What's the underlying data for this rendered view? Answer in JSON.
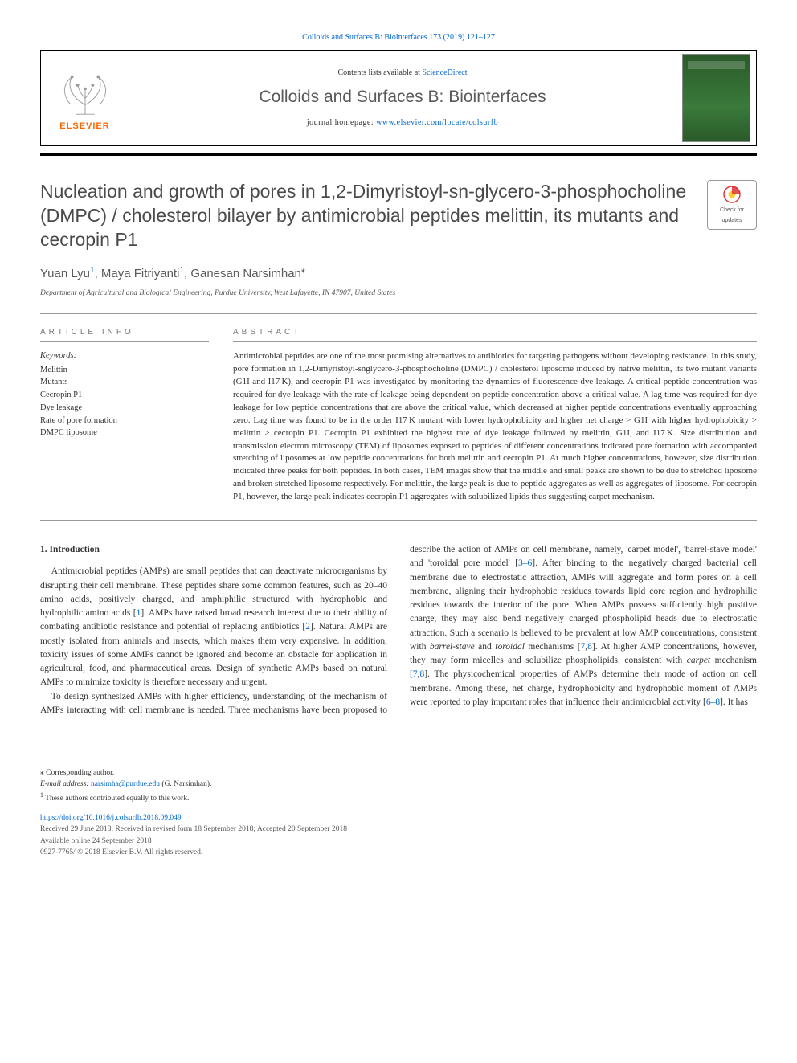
{
  "journal": {
    "citation_line": "Colloids and Surfaces B: Biointerfaces 173 (2019) 121–127",
    "contents_prefix": "Contents lists available at ",
    "contents_link": "ScienceDirect",
    "name": "Colloids and Surfaces B: Biointerfaces",
    "homepage_prefix": "journal homepage: ",
    "homepage_link": "www.elsevier.com/locate/colsurfb",
    "publisher_label": "ELSEVIER"
  },
  "badge": {
    "line1": "Check for",
    "line2": "updates"
  },
  "paper": {
    "title": "Nucleation and growth of pores in 1,2-Dimyristoyl-sn-glycero-3-phosphocholine (DMPC) / cholesterol bilayer by antimicrobial peptides melittin, its mutants and cecropin P1",
    "authors_html": "Yuan Lyu<sup>1</sup>, Maya Fitriyanti<sup>1</sup>, Ganesan Narsimhan<sup class=\"ast\">⁎</sup>",
    "affiliation": "Department of Agricultural and Biological Engineering, Purdue University, West Lafayette, IN 47907, United States"
  },
  "article_info": {
    "heading": "ARTICLE INFO",
    "keywords_label": "Keywords:",
    "keywords": [
      "Melittin",
      "Mutants",
      "Cecropin P1",
      "Dye leakage",
      "Rate of pore formation",
      "DMPC liposome"
    ]
  },
  "abstract": {
    "heading": "ABSTRACT",
    "text": "Antimicrobial peptides are one of the most promising alternatives to antibiotics for targeting pathogens without developing resistance. In this study, pore formation in 1,2-Dimyristoyl-snglycero-3-phosphocholine (DMPC) / cholesterol liposome induced by native melittin, its two mutant variants (G1I and I17 K), and cecropin P1 was investigated by monitoring the dynamics of fluorescence dye leakage. A critical peptide concentration was required for dye leakage with the rate of leakage being dependent on peptide concentration above a critical value. A lag time was required for dye leakage for low peptide concentrations that are above the critical value, which decreased at higher peptide concentrations eventually approaching zero. Lag time was found to be in the order I17 K mutant with lower hydrophobicity and higher net charge > G1I with higher hydrophobicity > melittin > cecropin P1. Cecropin P1 exhibited the highest rate of dye leakage followed by melittin, G1I, and I17 K. Size distribution and transmission electron microscopy (TEM) of liposomes exposed to peptides of different concentrations indicated pore formation with accompanied stretching of liposomes at low peptide concentrations for both melittin and cecropin P1. At much higher concentrations, however, size distribution indicated three peaks for both peptides. In both cases, TEM images show that the middle and small peaks are shown to be due to stretched liposome and broken stretched liposome respectively. For melittin, the large peak is due to peptide aggregates as well as aggregates of liposome. For cecropin P1, however, the large peak indicates cecropin P1 aggregates with solubilized lipids thus suggesting carpet mechanism."
  },
  "body": {
    "heading": "1. Introduction",
    "p1": "Antimicrobial peptides (AMPs) are small peptides that can deactivate microorganisms by disrupting their cell membrane. These peptides share some common features, such as 20–40 amino acids, positively charged, and amphiphilic structured with hydrophobic and hydrophilic amino acids [",
    "c1": "1",
    "p1b": "]. AMPs have raised broad research interest due to their ability of combating antibiotic resistance and potential of replacing antibiotics [",
    "c2": "2",
    "p1c": "]. Natural AMPs are mostly isolated from animals and insects, which makes them very expensive. In addition, toxicity issues of some AMPs cannot be ignored and become an obstacle for application in agricultural, food, and pharmaceutical areas. Design of synthetic AMPs based on natural AMPs to minimize toxicity is therefore necessary and urgent.",
    "p2": "To design synthesized AMPs with higher efficiency, understanding of the mechanism of AMPs interacting with cell membrane is needed.",
    "p3a": "Three mechanisms have been proposed to describe the action of AMPs on cell membrane, namely, 'carpet model', 'barrel-stave model' and 'toroidal pore model' [",
    "c3": "3–6",
    "p3b": "]. After binding to the negatively charged bacterial cell membrane due to electrostatic attraction, AMPs will aggregate and form pores on a cell membrane, aligning their hydrophobic residues towards lipid core region and hydrophilic residues towards the interior of the pore. When AMPs possess sufficiently high positive charge, they may also bend negatively charged phospholipid heads due to electrostatic attraction. Such a scenario is believed to be prevalent at low AMP concentrations, consistent with ",
    "i1": "barrel-stave",
    "p3c": " and ",
    "i2": "toroidal",
    "p3d": " mechanisms [",
    "c4": "7",
    "p3e": ",",
    "c5": "8",
    "p3f": "]. At higher AMP concentrations, however, they may form micelles and solubilize phospholipids, consistent with ",
    "i3": "carpet",
    "p3g": " mechanism [",
    "c6": "7",
    "p3h": ",",
    "c7": "8",
    "p3i": "]. The physicochemical properties of AMPs determine their mode of action on cell membrane. Among these, net charge, hydrophobicity and hydrophobic moment of AMPs were reported to play important roles that influence their antimicrobial activity [",
    "c8": "6–8",
    "p3j": "]. It has"
  },
  "footer": {
    "corresponding": "⁎ Corresponding author.",
    "email_label": "E-mail address: ",
    "email": "narsimha@purdue.edu",
    "email_suffix": " (G. Narsimhan).",
    "equal": "1 These authors contributed equally to this work.",
    "doi": "https://doi.org/10.1016/j.colsurfb.2018.09.049",
    "received": "Received 29 June 2018; Received in revised form 18 September 2018; Accepted 20 September 2018",
    "available": "Available online 24 September 2018",
    "copyright": "0927-7765/ © 2018 Elsevier B.V. All rights reserved."
  },
  "colors": {
    "link": "#0066cc",
    "elsevier_orange": "#ff6600",
    "heading_gray": "#5a5a5a",
    "text": "#333333"
  }
}
